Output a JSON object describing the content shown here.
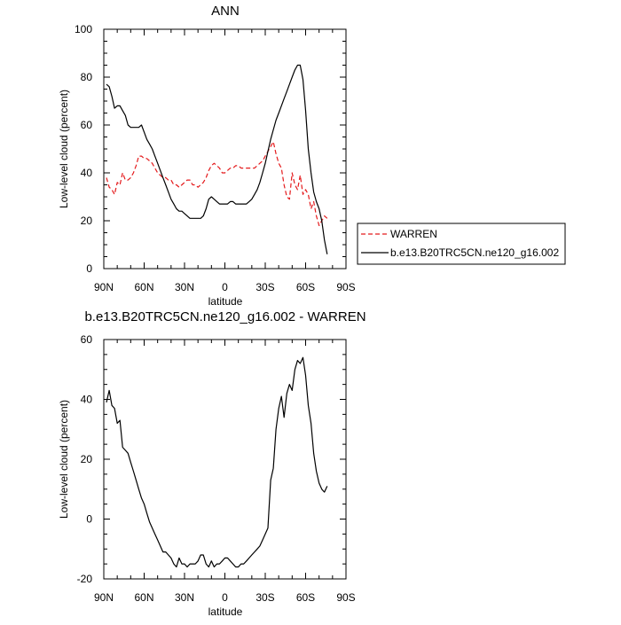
{
  "chart_data": [
    {
      "type": "line",
      "title": "ANN",
      "xlabel": "latitude",
      "ylabel": "Low-level cloud (percent)",
      "xlim": [
        90,
        -90
      ],
      "ylim": [
        0,
        100
      ],
      "x_ticks": [
        90,
        60,
        30,
        0,
        -30,
        -60,
        -90
      ],
      "x_tick_labels": [
        "90N",
        "60N",
        "30N",
        "0",
        "30S",
        "60S",
        "90S"
      ],
      "y_ticks": [
        0,
        20,
        40,
        60,
        80,
        100
      ],
      "y_tick_labels": [
        "0",
        "20",
        "40",
        "60",
        "80",
        "100"
      ],
      "legend_position": "right",
      "series": [
        {
          "name": "WARREN",
          "color": "#e41a1c",
          "dash": "dashed",
          "points": [
            [
              88,
              38
            ],
            [
              86,
              34
            ],
            [
              84,
              33
            ],
            [
              82,
              31
            ],
            [
              80,
              36
            ],
            [
              78,
              35
            ],
            [
              76,
              40
            ],
            [
              74,
              37
            ],
            [
              72,
              37
            ],
            [
              70,
              38
            ],
            [
              68,
              40
            ],
            [
              66,
              43
            ],
            [
              64,
              47
            ],
            [
              62,
              47
            ],
            [
              60,
              46
            ],
            [
              58,
              46
            ],
            [
              56,
              45
            ],
            [
              54,
              44
            ],
            [
              52,
              42
            ],
            [
              50,
              40
            ],
            [
              48,
              39
            ],
            [
              46,
              38
            ],
            [
              44,
              38
            ],
            [
              42,
              37
            ],
            [
              40,
              37
            ],
            [
              38,
              35
            ],
            [
              36,
              35
            ],
            [
              34,
              34
            ],
            [
              32,
              35
            ],
            [
              30,
              36
            ],
            [
              28,
              37
            ],
            [
              26,
              37
            ],
            [
              24,
              35
            ],
            [
              22,
              35
            ],
            [
              20,
              34
            ],
            [
              18,
              35
            ],
            [
              16,
              36
            ],
            [
              14,
              38
            ],
            [
              12,
              41
            ],
            [
              10,
              43
            ],
            [
              8,
              44
            ],
            [
              6,
              43
            ],
            [
              4,
              42
            ],
            [
              2,
              40
            ],
            [
              0,
              40
            ],
            [
              -2,
              41
            ],
            [
              -4,
              42
            ],
            [
              -6,
              42
            ],
            [
              -8,
              43
            ],
            [
              -10,
              43
            ],
            [
              -12,
              42
            ],
            [
              -14,
              42
            ],
            [
              -16,
              42
            ],
            [
              -18,
              42
            ],
            [
              -20,
              42
            ],
            [
              -22,
              42
            ],
            [
              -24,
              43
            ],
            [
              -26,
              44
            ],
            [
              -28,
              45
            ],
            [
              -30,
              47
            ],
            [
              -32,
              49
            ],
            [
              -34,
              51
            ],
            [
              -36,
              53
            ],
            [
              -38,
              48
            ],
            [
              -40,
              44
            ],
            [
              -42,
              42
            ],
            [
              -44,
              35
            ],
            [
              -46,
              30
            ],
            [
              -48,
              29
            ],
            [
              -50,
              40
            ],
            [
              -52,
              35
            ],
            [
              -54,
              33
            ],
            [
              -56,
              39
            ],
            [
              -58,
              31
            ],
            [
              -60,
              33
            ],
            [
              -62,
              31
            ],
            [
              -64,
              25
            ],
            [
              -66,
              28
            ],
            [
              -68,
              22
            ],
            [
              -70,
              18
            ],
            [
              -72,
              20
            ],
            [
              -74,
              22
            ],
            [
              -76,
              21
            ]
          ]
        },
        {
          "name": "b.e13.B20TRC5CN.ne120_g16.002",
          "color": "#000000",
          "dash": "solid",
          "points": [
            [
              88,
              77
            ],
            [
              86,
              76
            ],
            [
              84,
              72
            ],
            [
              82,
              67
            ],
            [
              80,
              68
            ],
            [
              78,
              68
            ],
            [
              76,
              66
            ],
            [
              74,
              64
            ],
            [
              72,
              60
            ],
            [
              70,
              59
            ],
            [
              68,
              59
            ],
            [
              66,
              59
            ],
            [
              64,
              59
            ],
            [
              62,
              60
            ],
            [
              60,
              57
            ],
            [
              58,
              54
            ],
            [
              56,
              52
            ],
            [
              54,
              50
            ],
            [
              52,
              47
            ],
            [
              50,
              44
            ],
            [
              48,
              41
            ],
            [
              46,
              38
            ],
            [
              44,
              35
            ],
            [
              42,
              32
            ],
            [
              40,
              29
            ],
            [
              38,
              27
            ],
            [
              36,
              25
            ],
            [
              34,
              24
            ],
            [
              32,
              24
            ],
            [
              30,
              23
            ],
            [
              28,
              22
            ],
            [
              26,
              21
            ],
            [
              24,
              21
            ],
            [
              22,
              21
            ],
            [
              20,
              21
            ],
            [
              18,
              21
            ],
            [
              16,
              22
            ],
            [
              14,
              25
            ],
            [
              12,
              29
            ],
            [
              10,
              30
            ],
            [
              8,
              29
            ],
            [
              6,
              28
            ],
            [
              4,
              27
            ],
            [
              2,
              27
            ],
            [
              0,
              27
            ],
            [
              -2,
              27
            ],
            [
              -4,
              28
            ],
            [
              -6,
              28
            ],
            [
              -8,
              27
            ],
            [
              -10,
              27
            ],
            [
              -12,
              27
            ],
            [
              -14,
              27
            ],
            [
              -16,
              27
            ],
            [
              -18,
              28
            ],
            [
              -20,
              29
            ],
            [
              -22,
              31
            ],
            [
              -24,
              33
            ],
            [
              -26,
              36
            ],
            [
              -28,
              40
            ],
            [
              -30,
              44
            ],
            [
              -32,
              49
            ],
            [
              -34,
              54
            ],
            [
              -36,
              58
            ],
            [
              -38,
              62
            ],
            [
              -40,
              65
            ],
            [
              -42,
              68
            ],
            [
              -44,
              71
            ],
            [
              -46,
              74
            ],
            [
              -48,
              77
            ],
            [
              -50,
              80
            ],
            [
              -52,
              83
            ],
            [
              -54,
              85
            ],
            [
              -56,
              85
            ],
            [
              -58,
              79
            ],
            [
              -60,
              66
            ],
            [
              -62,
              50
            ],
            [
              -64,
              40
            ],
            [
              -66,
              32
            ],
            [
              -68,
              28
            ],
            [
              -70,
              25
            ],
            [
              -72,
              20
            ],
            [
              -74,
              12
            ],
            [
              -76,
              6
            ]
          ]
        }
      ]
    },
    {
      "type": "line",
      "title": "b.e13.B20TRC5CN.ne120_g16.002 - WARREN",
      "xlabel": "latitude",
      "ylabel": "Low-level cloud (percent)",
      "xlim": [
        90,
        -90
      ],
      "ylim": [
        -20,
        60
      ],
      "x_ticks": [
        90,
        60,
        30,
        0,
        -30,
        -60,
        -90
      ],
      "x_tick_labels": [
        "90N",
        "60N",
        "30N",
        "0",
        "30S",
        "60S",
        "90S"
      ],
      "y_ticks": [
        -20,
        0,
        20,
        40,
        60
      ],
      "y_tick_labels": [
        "-20",
        "0",
        "20",
        "40",
        "60"
      ],
      "series": [
        {
          "color": "#000000",
          "dash": "solid",
          "points": [
            [
              88,
              39
            ],
            [
              86,
              43
            ],
            [
              84,
              38
            ],
            [
              82,
              37
            ],
            [
              80,
              32
            ],
            [
              78,
              33
            ],
            [
              76,
              24
            ],
            [
              74,
              23
            ],
            [
              72,
              22
            ],
            [
              70,
              19
            ],
            [
              68,
              16
            ],
            [
              66,
              13
            ],
            [
              64,
              10
            ],
            [
              62,
              7
            ],
            [
              60,
              5
            ],
            [
              58,
              2
            ],
            [
              56,
              -1
            ],
            [
              54,
              -3
            ],
            [
              52,
              -5
            ],
            [
              50,
              -7
            ],
            [
              48,
              -9
            ],
            [
              46,
              -11
            ],
            [
              44,
              -11
            ],
            [
              42,
              -12
            ],
            [
              40,
              -13
            ],
            [
              38,
              -15
            ],
            [
              36,
              -16
            ],
            [
              34,
              -13
            ],
            [
              32,
              -15
            ],
            [
              30,
              -15
            ],
            [
              28,
              -16
            ],
            [
              26,
              -15
            ],
            [
              24,
              -15
            ],
            [
              22,
              -15
            ],
            [
              20,
              -14
            ],
            [
              18,
              -12
            ],
            [
              16,
              -12
            ],
            [
              14,
              -15
            ],
            [
              12,
              -16
            ],
            [
              10,
              -14
            ],
            [
              8,
              -16
            ],
            [
              6,
              -15
            ],
            [
              4,
              -15
            ],
            [
              2,
              -14
            ],
            [
              0,
              -13
            ],
            [
              -2,
              -13
            ],
            [
              -4,
              -14
            ],
            [
              -6,
              -15
            ],
            [
              -8,
              -16
            ],
            [
              -10,
              -16
            ],
            [
              -12,
              -15
            ],
            [
              -14,
              -15
            ],
            [
              -16,
              -14
            ],
            [
              -18,
              -13
            ],
            [
              -20,
              -12
            ],
            [
              -22,
              -11
            ],
            [
              -24,
              -10
            ],
            [
              -26,
              -9
            ],
            [
              -28,
              -7
            ],
            [
              -30,
              -5
            ],
            [
              -32,
              -3
            ],
            [
              -34,
              13
            ],
            [
              -36,
              17
            ],
            [
              -38,
              30
            ],
            [
              -40,
              37
            ],
            [
              -42,
              41
            ],
            [
              -44,
              34
            ],
            [
              -46,
              42
            ],
            [
              -48,
              45
            ],
            [
              -50,
              43
            ],
            [
              -52,
              50
            ],
            [
              -54,
              53
            ],
            [
              -56,
              52
            ],
            [
              -58,
              54
            ],
            [
              -60,
              48
            ],
            [
              -62,
              38
            ],
            [
              -64,
              32
            ],
            [
              -66,
              22
            ],
            [
              -68,
              16
            ],
            [
              -70,
              12
            ],
            [
              -72,
              10
            ],
            [
              -74,
              9
            ],
            [
              -76,
              11
            ]
          ]
        }
      ]
    }
  ]
}
